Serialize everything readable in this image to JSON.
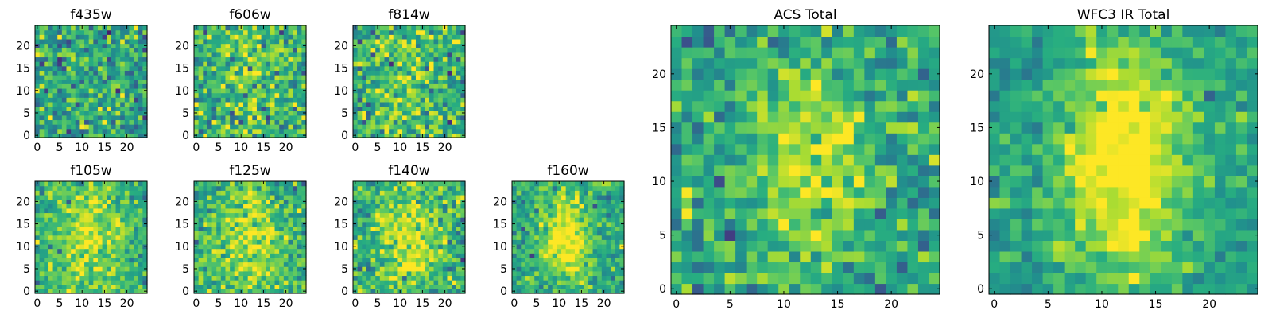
{
  "chart_data": [
    {
      "type": "heatmap",
      "title": "f435w",
      "colormap": "viridis",
      "grid_size": 25,
      "xlim": [
        -0.5,
        24.5
      ],
      "ylim": [
        -0.5,
        24.5
      ],
      "xticks": [
        0,
        5,
        10,
        15,
        20
      ],
      "yticks": [
        0,
        5,
        10,
        15,
        20
      ],
      "xlabel": "",
      "ylabel": "",
      "noise": 1.0,
      "center_strength": 0.05,
      "center_sigma": 4.5,
      "mean": 0.58,
      "seed": 11
    },
    {
      "type": "heatmap",
      "title": "f606w",
      "colormap": "viridis",
      "grid_size": 25,
      "xlim": [
        -0.5,
        24.5
      ],
      "ylim": [
        -0.5,
        24.5
      ],
      "xticks": [
        0,
        5,
        10,
        15,
        20
      ],
      "yticks": [
        0,
        5,
        10,
        15,
        20
      ],
      "xlabel": "",
      "ylabel": "",
      "noise": 1.0,
      "center_strength": 0.15,
      "center_sigma": 4.0,
      "mean": 0.62,
      "seed": 22
    },
    {
      "type": "heatmap",
      "title": "f814w",
      "colormap": "viridis",
      "grid_size": 25,
      "xlim": [
        -0.5,
        24.5
      ],
      "ylim": [
        -0.5,
        24.5
      ],
      "xticks": [
        0,
        5,
        10,
        15,
        20
      ],
      "yticks": [
        0,
        5,
        10,
        15,
        20
      ],
      "xlabel": "",
      "ylabel": "",
      "noise": 1.0,
      "center_strength": 0.18,
      "center_sigma": 4.0,
      "mean": 0.62,
      "seed": 33
    },
    {
      "type": "heatmap",
      "title": "f105w",
      "colormap": "viridis",
      "grid_size": 25,
      "xlim": [
        -0.5,
        24.5
      ],
      "ylim": [
        -0.5,
        24.5
      ],
      "xticks": [
        0,
        5,
        10,
        15,
        20
      ],
      "yticks": [
        0,
        5,
        10,
        15,
        20
      ],
      "xlabel": "",
      "ylabel": "",
      "noise": 0.8,
      "center_strength": 0.3,
      "center_sigma": 4.0,
      "mean": 0.63,
      "seed": 44
    },
    {
      "type": "heatmap",
      "title": "f125w",
      "colormap": "viridis",
      "grid_size": 25,
      "xlim": [
        -0.5,
        24.5
      ],
      "ylim": [
        -0.5,
        24.5
      ],
      "xticks": [
        0,
        5,
        10,
        15,
        20
      ],
      "yticks": [
        0,
        5,
        10,
        15,
        20
      ],
      "xlabel": "",
      "ylabel": "",
      "noise": 0.8,
      "center_strength": 0.3,
      "center_sigma": 4.0,
      "mean": 0.63,
      "seed": 55
    },
    {
      "type": "heatmap",
      "title": "f140w",
      "colormap": "viridis",
      "grid_size": 25,
      "xlim": [
        -0.5,
        24.5
      ],
      "ylim": [
        -0.5,
        24.5
      ],
      "xticks": [
        0,
        5,
        10,
        15,
        20
      ],
      "yticks": [
        0,
        5,
        10,
        15,
        20
      ],
      "xlabel": "",
      "ylabel": "",
      "noise": 0.85,
      "center_strength": 0.35,
      "center_sigma": 3.5,
      "mean": 0.62,
      "seed": 66
    },
    {
      "type": "heatmap",
      "title": "f160w",
      "colormap": "viridis",
      "grid_size": 25,
      "xlim": [
        -0.5,
        24.5
      ],
      "ylim": [
        -0.5,
        24.5
      ],
      "xticks": [
        0,
        5,
        10,
        15,
        20
      ],
      "yticks": [
        0,
        5,
        10,
        15,
        20
      ],
      "xlabel": "",
      "ylabel": "",
      "noise": 0.75,
      "center_strength": 0.45,
      "center_sigma": 3.0,
      "mean": 0.6,
      "seed": 77
    },
    {
      "type": "heatmap",
      "title": "ACS Total",
      "colormap": "viridis",
      "grid_size": 25,
      "xlim": [
        -0.5,
        24.5
      ],
      "ylim": [
        -0.5,
        24.5
      ],
      "xticks": [
        0,
        5,
        10,
        15,
        20
      ],
      "yticks": [
        0,
        5,
        10,
        15,
        20
      ],
      "xlabel": "",
      "ylabel": "",
      "noise": 0.8,
      "center_strength": 0.3,
      "center_sigma": 3.0,
      "mean": 0.6,
      "seed": 88
    },
    {
      "type": "heatmap",
      "title": "WFC3 IR Total",
      "colormap": "viridis",
      "grid_size": 25,
      "xlim": [
        -0.5,
        24.5
      ],
      "ylim": [
        -0.5,
        24.5
      ],
      "xticks": [
        0,
        5,
        10,
        15,
        20
      ],
      "yticks": [
        0,
        5,
        10,
        15,
        20
      ],
      "xlabel": "",
      "ylabel": "",
      "noise": 0.55,
      "center_strength": 0.55,
      "center_sigma": 3.5,
      "mean": 0.55,
      "seed": 99
    }
  ]
}
